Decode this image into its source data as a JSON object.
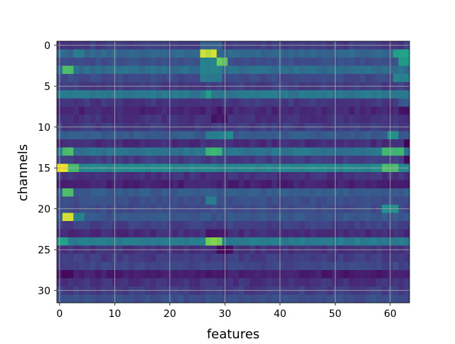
{
  "chart_data": {
    "type": "heatmap",
    "title": "",
    "xlabel": "features",
    "ylabel": "channels",
    "x_ticks": [
      0,
      10,
      20,
      30,
      40,
      50,
      60
    ],
    "y_ticks": [
      0,
      5,
      10,
      15,
      20,
      25,
      30
    ],
    "xlim": [
      -0.5,
      63.5
    ],
    "ylim": [
      31.5,
      -0.5
    ],
    "n_rows": 32,
    "n_cols": 64,
    "grid": true,
    "colormap": "viridis",
    "value_range": [
      0,
      1
    ],
    "row_profiles": [
      {
        "base": 0.22,
        "accents": [
          [
            26,
            29,
            0.4
          ]
        ]
      },
      {
        "base": 0.42,
        "accents": [
          [
            3,
            4,
            0.52
          ],
          [
            26,
            28,
            0.95
          ],
          [
            61,
            63,
            0.7
          ]
        ]
      },
      {
        "base": 0.3,
        "accents": [
          [
            26,
            28,
            0.55
          ],
          [
            29,
            30,
            0.85
          ],
          [
            62,
            63,
            0.68
          ]
        ]
      },
      {
        "base": 0.45,
        "accents": [
          [
            1,
            2,
            0.82
          ],
          [
            26,
            29,
            0.55
          ]
        ]
      },
      {
        "base": 0.28,
        "accents": [
          [
            26,
            29,
            0.5
          ],
          [
            61,
            63,
            0.55
          ]
        ]
      },
      {
        "base": 0.22
      },
      {
        "base": 0.5,
        "accents": [
          [
            27,
            27,
            0.68
          ]
        ]
      },
      {
        "base": 0.2,
        "accents": [
          [
            62,
            63,
            0.35
          ]
        ]
      },
      {
        "base": 0.14,
        "accents": [
          [
            29,
            29,
            0.05
          ],
          [
            62,
            63,
            0.05
          ]
        ]
      },
      {
        "base": 0.18,
        "accents": [
          [
            28,
            30,
            0.08
          ]
        ]
      },
      {
        "base": 0.22
      },
      {
        "base": 0.36,
        "accents": [
          [
            27,
            29,
            0.52
          ],
          [
            30,
            31,
            0.58
          ],
          [
            60,
            61,
            0.62
          ]
        ]
      },
      {
        "base": 0.16,
        "accents": [
          [
            63,
            63,
            0.02
          ]
        ]
      },
      {
        "base": 0.48,
        "accents": [
          [
            1,
            2,
            0.8
          ],
          [
            27,
            29,
            0.8
          ],
          [
            59,
            62,
            0.8
          ]
        ]
      },
      {
        "base": 0.22,
        "accents": [
          [
            63,
            63,
            0.02
          ]
        ]
      },
      {
        "base": 0.58,
        "accents": [
          [
            0,
            1,
            1.0
          ],
          [
            2,
            3,
            0.82
          ],
          [
            59,
            61,
            0.8
          ]
        ]
      },
      {
        "base": 0.18
      },
      {
        "base": 0.12
      },
      {
        "base": 0.36,
        "accents": [
          [
            1,
            2,
            0.82
          ]
        ]
      },
      {
        "base": 0.3,
        "accents": [
          [
            27,
            28,
            0.52
          ]
        ]
      },
      {
        "base": 0.28,
        "accents": [
          [
            59,
            61,
            0.62
          ]
        ]
      },
      {
        "base": 0.34,
        "accents": [
          [
            1,
            2,
            0.95
          ],
          [
            3,
            4,
            0.55
          ]
        ]
      },
      {
        "base": 0.24
      },
      {
        "base": 0.16,
        "accents": [
          [
            27,
            30,
            0.08
          ]
        ]
      },
      {
        "base": 0.52,
        "accents": [
          [
            0,
            1,
            0.72
          ],
          [
            27,
            29,
            0.88
          ]
        ]
      },
      {
        "base": 0.18,
        "accents": [
          [
            29,
            31,
            0.05
          ]
        ]
      },
      {
        "base": 0.22
      },
      {
        "base": 0.26
      },
      {
        "base": 0.1,
        "accents": [
          [
            1,
            2,
            0.02
          ]
        ]
      },
      {
        "base": 0.18
      },
      {
        "base": 0.22
      },
      {
        "base": 0.3
      }
    ]
  }
}
